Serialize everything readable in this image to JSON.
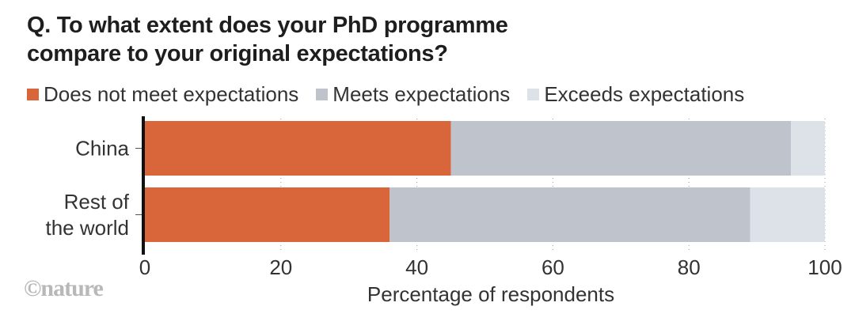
{
  "chart_data": {
    "type": "bar",
    "orientation": "horizontal",
    "stacked": true,
    "title": "Q. To what extent does your PhD programme compare to your original expectations?",
    "title_lines": [
      "Q. To what extent does your PhD programme",
      "compare to your original expectations?"
    ],
    "categories": [
      "China",
      "Rest of the world"
    ],
    "category_label_lines": [
      [
        "China"
      ],
      [
        "Rest of",
        "the world"
      ]
    ],
    "series": [
      {
        "name": "Does not meet expectations",
        "color": "#d9653a",
        "values": [
          45,
          36
        ]
      },
      {
        "name": "Meets expectations",
        "color": "#bfc3cb",
        "values": [
          50,
          53
        ]
      },
      {
        "name": "Exceeds expectations",
        "color": "#dde1e8",
        "values": [
          5,
          11
        ]
      }
    ],
    "xlabel": "Percentage of respondents",
    "ylabel": "",
    "xlim": [
      0,
      100
    ],
    "xticks": [
      0,
      20,
      40,
      60,
      80,
      100
    ],
    "grid": "dotted-vertical",
    "legend_position": "top"
  },
  "credit": "©nature"
}
